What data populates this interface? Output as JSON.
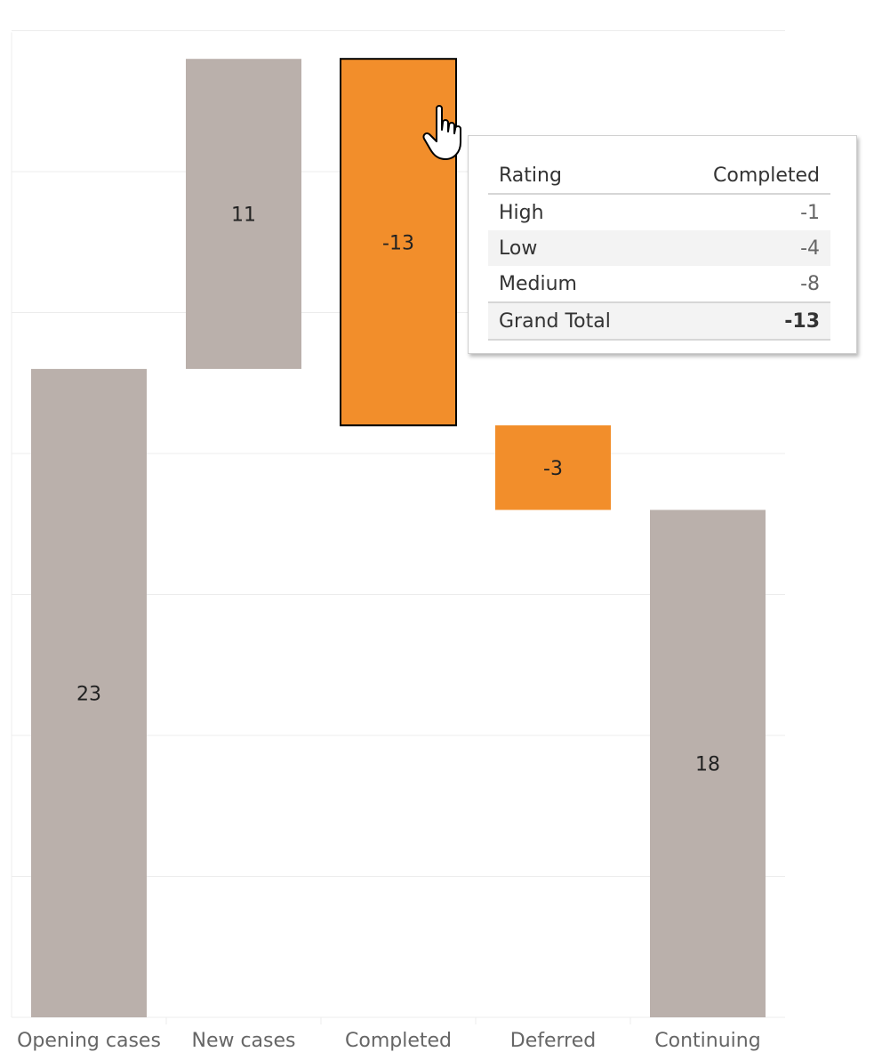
{
  "chart_data": {
    "type": "bar",
    "subtype": "waterfall",
    "categories": [
      "Opening cases",
      "New cases",
      "Completed",
      "Deferred",
      "Continuing"
    ],
    "values": [
      23,
      11,
      -13,
      -3,
      18
    ],
    "value_labels": [
      "23",
      "11",
      "-13",
      "-3",
      "18"
    ],
    "kinds": [
      "total",
      "step",
      "step",
      "step",
      "total"
    ],
    "ylim": [
      0,
      35
    ],
    "grid": true,
    "y_axis_labels_shown": false,
    "highlighted_category": "Completed",
    "colors": {
      "total": "#bab0ab",
      "increase": "#bab0ab",
      "decrease": "#f28e2b",
      "gridline": "#ececec",
      "axis_text": "#666666",
      "highlight_border": "#000000"
    }
  },
  "tooltip": {
    "headers": {
      "rating": "Rating",
      "completed": "Completed"
    },
    "rows": [
      {
        "label": "High",
        "value": "-1"
      },
      {
        "label": "Low",
        "value": "-4"
      },
      {
        "label": "Medium",
        "value": "-8"
      }
    ],
    "total": {
      "label": "Grand Total",
      "value": "-13"
    }
  },
  "cursor_icon": "hand-pointer-icon"
}
